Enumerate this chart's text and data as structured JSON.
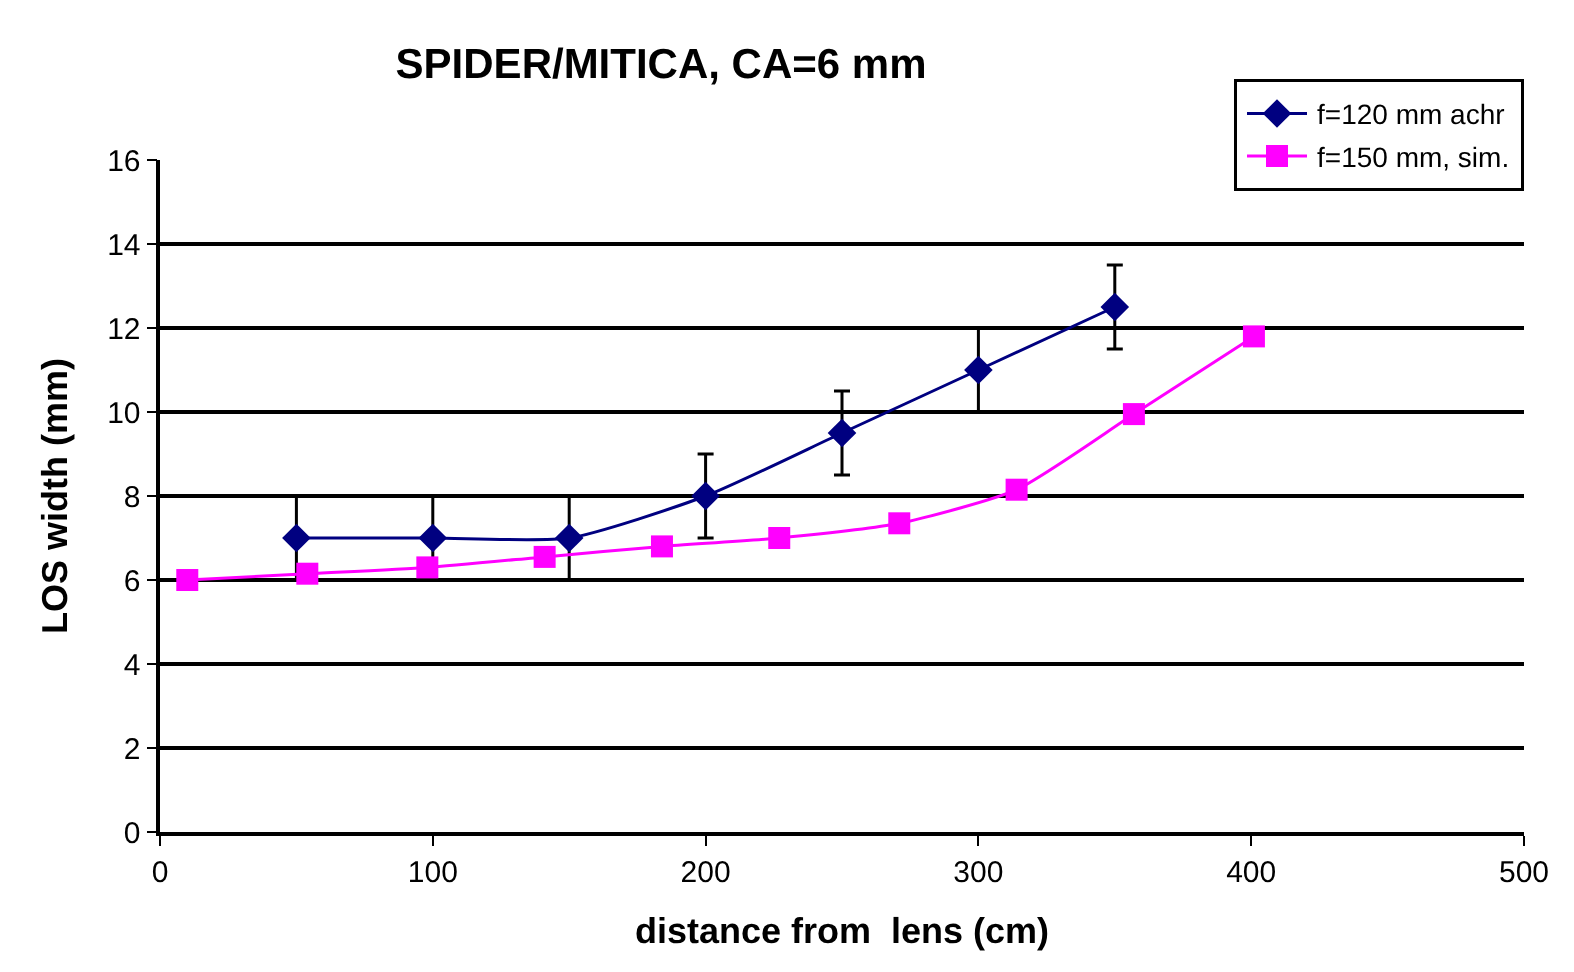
{
  "chart_data": {
    "type": "line",
    "title": "SPIDER/MITICA, CA=6 mm",
    "xlabel": "distance from  lens (cm)",
    "ylabel": "LOS width (mm)",
    "xlim": [
      0,
      500
    ],
    "xticks": [
      0,
      100,
      200,
      300,
      400,
      500
    ],
    "ylim": [
      0,
      16
    ],
    "yticks": [
      0,
      2,
      4,
      6,
      8,
      10,
      12,
      14,
      16
    ],
    "grid": "y",
    "legend": "top right",
    "series": [
      {
        "name": "f=120 mm achr",
        "color": "#000080",
        "marker": "diamond",
        "x": [
          50,
          100,
          150,
          200,
          250,
          300,
          350
        ],
        "values": [
          7,
          7,
          7,
          8,
          9.5,
          11,
          12.5
        ],
        "errors": [
          1,
          1,
          1,
          1,
          1,
          1,
          1
        ]
      },
      {
        "name": "f=150 mm, sim.",
        "color": "#ff00ff",
        "marker": "square",
        "x": [
          10,
          54,
          98,
          141,
          184,
          227,
          271,
          314,
          357,
          401
        ],
        "values": [
          6,
          6.15,
          6.3,
          6.55,
          6.8,
          7.0,
          7.35,
          8.15,
          9.95,
          11.8
        ]
      }
    ]
  }
}
